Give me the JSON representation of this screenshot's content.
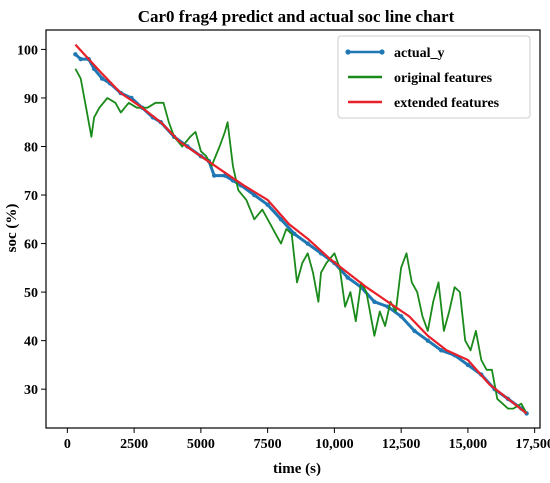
{
  "chart_data": {
    "type": "line",
    "title": "Car0 frag4 predict and actual soc line chart",
    "xlabel": "time (s)",
    "ylabel": "soc (%)",
    "xlim": [
      -800,
      17700
    ],
    "ylim": [
      22,
      104
    ],
    "x_ticks": [
      0,
      2500,
      5000,
      7500,
      10000,
      12500,
      15000,
      17500
    ],
    "x_tick_labels": [
      "0",
      "2500",
      "5000",
      "7500",
      "10,000",
      "12,500",
      "15,000",
      "17,500"
    ],
    "y_ticks": [
      30,
      40,
      50,
      60,
      70,
      80,
      90,
      100
    ],
    "y_tick_labels": [
      "30",
      "40",
      "50",
      "60",
      "70",
      "80",
      "90",
      "100"
    ],
    "grid": false,
    "legend_position": "top-right",
    "series": [
      {
        "name": "actual_y",
        "color": "#1f77b4",
        "marker": "dot",
        "x": [
          300,
          500,
          800,
          1000,
          1300,
          1600,
          2000,
          2400,
          2800,
          3200,
          3500,
          4000,
          4500,
          5000,
          5300,
          5500,
          5900,
          6200,
          6500,
          7000,
          7500,
          8000,
          8500,
          9000,
          9500,
          10000,
          10500,
          11000,
          11500,
          12000,
          12500,
          13000,
          13500,
          14000,
          14500,
          15000,
          15500,
          16000,
          16500,
          17000,
          17200
        ],
        "y": [
          99,
          98,
          98,
          96,
          94,
          93,
          91,
          90,
          88,
          86,
          85,
          82,
          80,
          78,
          77,
          74,
          74,
          73,
          72,
          70,
          68,
          65,
          62,
          60,
          58,
          56,
          53,
          51,
          48,
          47,
          45,
          42,
          40,
          38,
          37,
          35,
          33,
          30,
          28,
          26,
          25
        ]
      },
      {
        "name": "original features",
        "color": "#1a8a1a",
        "marker": "none",
        "x": [
          300,
          500,
          700,
          900,
          1000,
          1200,
          1500,
          1800,
          2000,
          2300,
          2600,
          3000,
          3300,
          3600,
          3800,
          4000,
          4300,
          4600,
          4800,
          5000,
          5200,
          5400,
          5700,
          5900,
          6000,
          6200,
          6400,
          6700,
          7000,
          7300,
          7600,
          7800,
          8000,
          8200,
          8400,
          8600,
          8800,
          9000,
          9200,
          9400,
          9500,
          9700,
          10000,
          10200,
          10400,
          10600,
          10800,
          11000,
          11200,
          11500,
          11700,
          11900,
          12100,
          12300,
          12500,
          12700,
          12900,
          13100,
          13300,
          13500,
          13700,
          13900,
          14100,
          14300,
          14500,
          14700,
          14900,
          15100,
          15300,
          15500,
          15700,
          15900,
          16100,
          16300,
          16500,
          16700,
          17000,
          17200
        ],
        "y": [
          96,
          94,
          88,
          82,
          86,
          88,
          90,
          89,
          87,
          89,
          88,
          88,
          89,
          89,
          85,
          82,
          80,
          82,
          83,
          79,
          78,
          76,
          80,
          83,
          85,
          76,
          71,
          69,
          65,
          67,
          64,
          62,
          60,
          63,
          62,
          52,
          56,
          58,
          54,
          48,
          54,
          56,
          58,
          55,
          47,
          50,
          44,
          52,
          50,
          41,
          46,
          43,
          48,
          46,
          55,
          58,
          52,
          50,
          45,
          42,
          48,
          52,
          42,
          46,
          51,
          50,
          40,
          38,
          42,
          36,
          34,
          34,
          28,
          27,
          26,
          26,
          27,
          25
        ]
      },
      {
        "name": "extended features",
        "color": "#e8202a",
        "marker": "none",
        "x": [
          300,
          800,
          1300,
          2000,
          2800,
          3500,
          4200,
          5000,
          5800,
          6600,
          7500,
          8300,
          9000,
          9800,
          10500,
          11200,
          12000,
          12800,
          13500,
          14200,
          15000,
          15800,
          16500,
          17200
        ],
        "y": [
          101,
          98,
          95,
          91,
          88,
          85,
          81,
          78,
          75,
          72,
          69,
          64,
          61,
          57,
          54,
          51,
          48,
          45,
          41,
          38,
          36,
          31,
          28,
          25
        ]
      }
    ]
  }
}
